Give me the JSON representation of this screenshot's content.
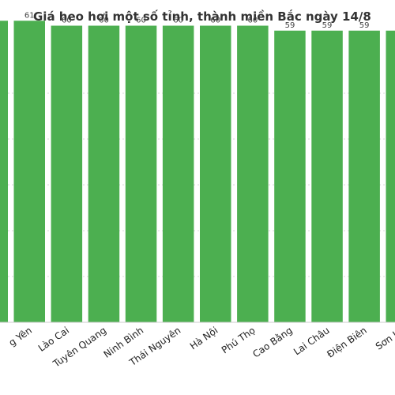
{
  "chart_data": {
    "type": "bar",
    "title": "Giá heo hơi một số tỉnh, thành miền Bắc ngày 14/8",
    "categories": [
      "Hưng Yên",
      "Lào Cai",
      "Tuyên Quang",
      "Ninh Bình",
      "Thái Nguyên",
      "Hà Nội",
      "Phú Thọ",
      "Cao Bằng",
      "Lai Châu",
      "Điện Biên",
      "Sơn La"
    ],
    "visible_categories": [
      "g Yên",
      "Lào Cai",
      "Tuyên Quang",
      "Ninh Bình",
      "Thái Nguyên",
      "Hà Nội",
      "Phú Thọ",
      "Cao Bằng",
      "Lai Châu",
      "Điện Biên",
      "Sơn La"
    ],
    "values": [
      61,
      60,
      60,
      60,
      60,
      60,
      60,
      59,
      59,
      59,
      59
    ],
    "value_labels": [
      "61",
      "60",
      "60",
      "60",
      "60",
      "60",
      "60",
      "59",
      "59",
      "59",
      ""
    ],
    "leading_bar_value": 61,
    "ylim": [
      0,
      62
    ],
    "grid": true,
    "bar_color": "#4caf50",
    "xlabel": "",
    "ylabel": ""
  }
}
